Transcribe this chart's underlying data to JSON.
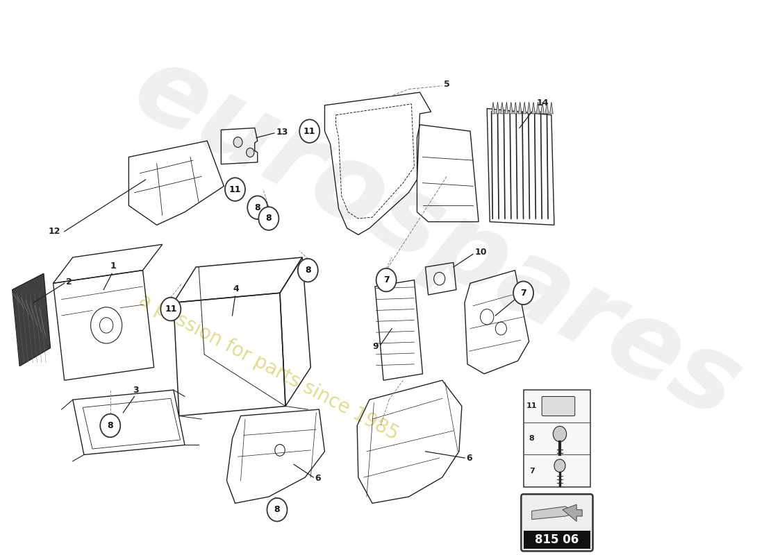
{
  "bg_color": "#ffffff",
  "watermark_text": "a passion for parts since 1985",
  "watermark_color": "#c8b820",
  "watermark_alpha": 0.5,
  "logo_text": "eurospares",
  "logo_color": "#cccccc",
  "logo_alpha": 0.3,
  "part_number_box": "815 06",
  "part_number_bg": "#111111",
  "part_number_text_color": "#ffffff",
  "callout_circle_color": "#ffffff",
  "callout_circle_edge": "#333333",
  "callout_text_color": "#111111",
  "line_color": "#222222",
  "dashed_color": "#888888",
  "fig_width": 11.0,
  "fig_height": 8.0,
  "dpi": 100
}
